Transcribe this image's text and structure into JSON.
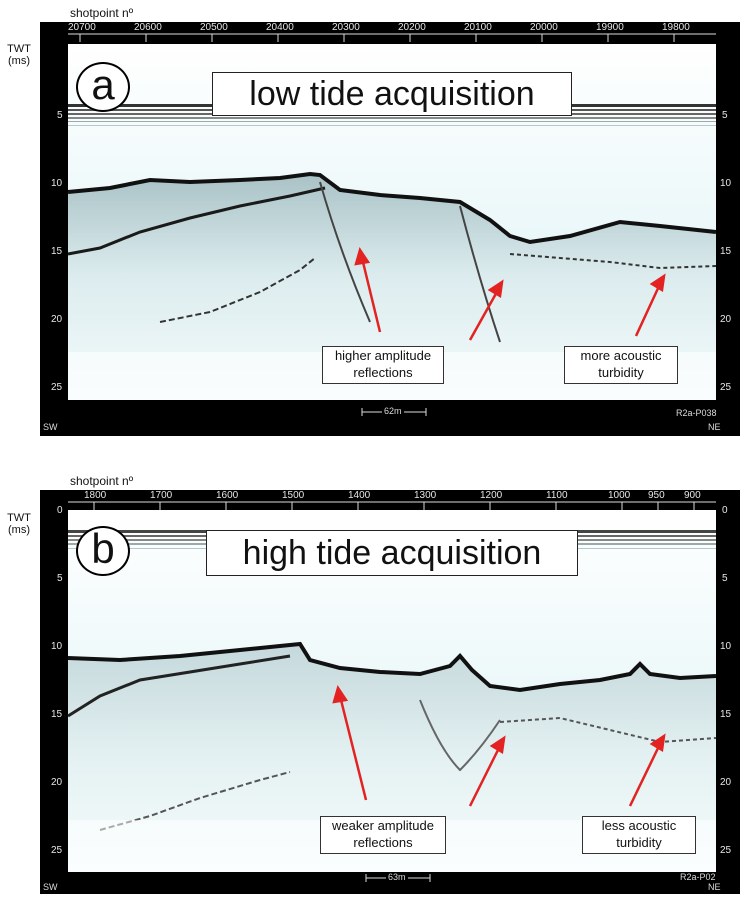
{
  "shotpoint_label": "shotpoint nº",
  "twt_label": "TWT",
  "twt_unit": "(ms)",
  "panel_a": {
    "letter": "a",
    "title": "low tide acquisition",
    "shotpoints": [
      "20700",
      "20600",
      "20500",
      "20400",
      "20300",
      "20200",
      "20100",
      "20000",
      "19900",
      "19800"
    ],
    "depths": [
      "5",
      "10",
      "15",
      "20",
      "25"
    ],
    "annotations": [
      {
        "line1": "higher amplitude",
        "line2": "reflections"
      },
      {
        "line1": "more acoustic",
        "line2": "turbidity"
      }
    ],
    "scale": "62m",
    "id": "R2a-P038",
    "left_dir": "SW",
    "right_dir": "NE"
  },
  "panel_b": {
    "letter": "b",
    "title": "high tide acquisition",
    "shotpoints": [
      "1800",
      "1700",
      "1600",
      "1500",
      "1400",
      "1300",
      "1200",
      "1100",
      "1000",
      "950",
      "900"
    ],
    "depths": [
      "0",
      "5",
      "10",
      "15",
      "20",
      "25"
    ],
    "annotations": [
      {
        "line1": "weaker amplitude",
        "line2": "reflections"
      },
      {
        "line1": "less acoustic",
        "line2": "turbidity"
      }
    ],
    "scale": "63m",
    "id": "R2a-P02",
    "left_dir": "SW",
    "right_dir": "NE"
  },
  "colors": {
    "frame": "#000000",
    "water": "#e4f6f8",
    "arrow": "#e32222"
  }
}
